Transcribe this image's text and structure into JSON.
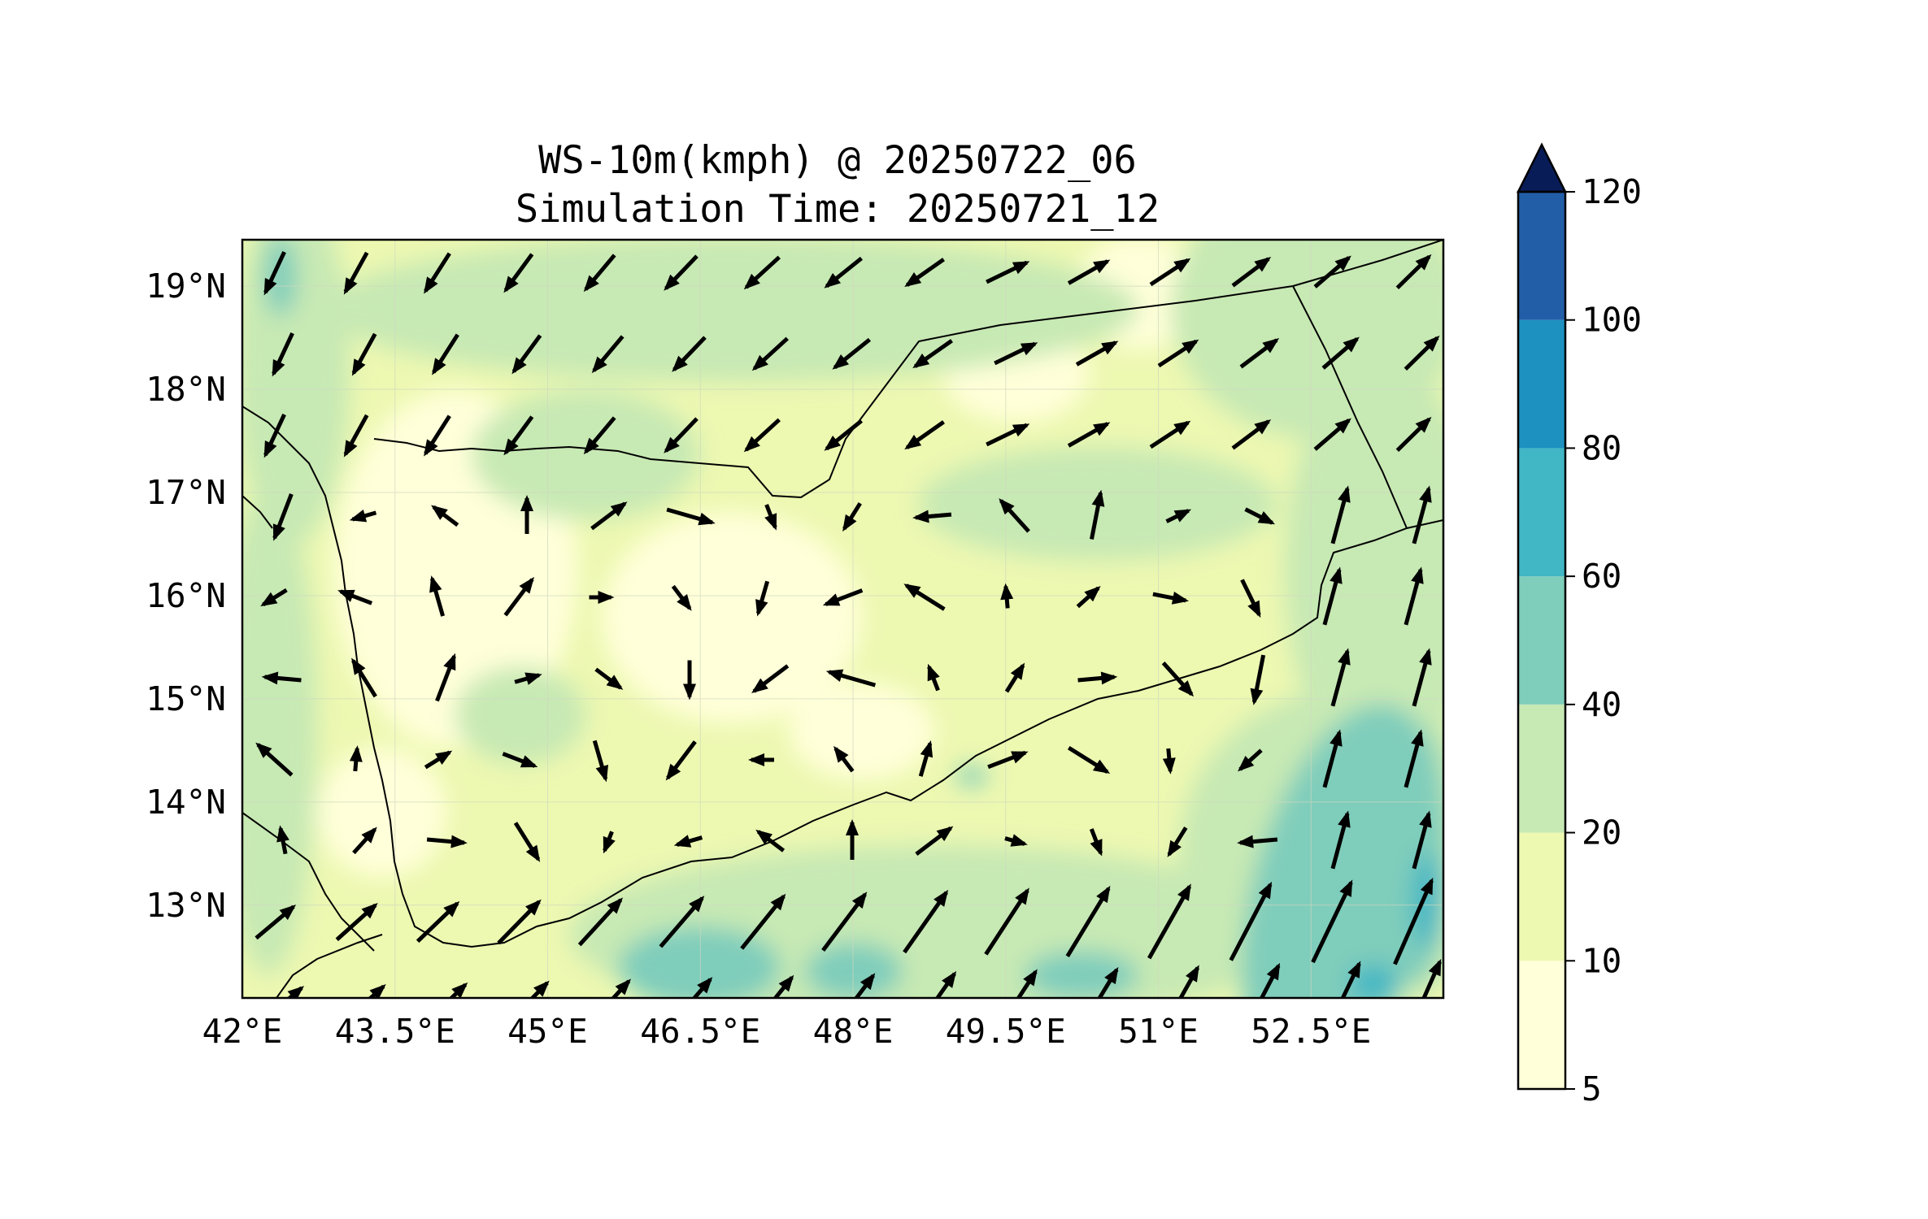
{
  "title": {
    "line1": "WS-10m(kmph) @ 20250722_06",
    "line2": "Simulation Time: 20250721_12"
  },
  "map": {
    "lon_range": [
      42.0,
      53.8
    ],
    "lat_range": [
      12.1,
      19.45
    ],
    "x_ticks": [
      {
        "lon": 42.0,
        "label": "42°E"
      },
      {
        "lon": 43.5,
        "label": "43.5°E"
      },
      {
        "lon": 45.0,
        "label": "45°E"
      },
      {
        "lon": 46.5,
        "label": "46.5°E"
      },
      {
        "lon": 48.0,
        "label": "48°E"
      },
      {
        "lon": 49.5,
        "label": "49.5°E"
      },
      {
        "lon": 51.0,
        "label": "51°E"
      },
      {
        "lon": 52.5,
        "label": "52.5°E"
      }
    ],
    "y_ticks": [
      {
        "lat": 19,
        "label": "19°N"
      },
      {
        "lat": 18,
        "label": "18°N"
      },
      {
        "lat": 17,
        "label": "17°N"
      },
      {
        "lat": 16,
        "label": "16°N"
      },
      {
        "lat": 15,
        "label": "15°N"
      },
      {
        "lat": 14,
        "label": "14°N"
      },
      {
        "lat": 13,
        "label": "13°N"
      }
    ],
    "gridlines": true
  },
  "colorbar": {
    "levels": [
      "5",
      "10",
      "20",
      "40",
      "60",
      "80",
      "100",
      "120"
    ],
    "colors": [
      "#ffffd9",
      "#edf8b1",
      "#c7e9b4",
      "#7fcdbb",
      "#41b6c4",
      "#1d91c0",
      "#225ea8",
      "#253494"
    ],
    "extend_color": "#081d58",
    "extend": "max"
  }
}
